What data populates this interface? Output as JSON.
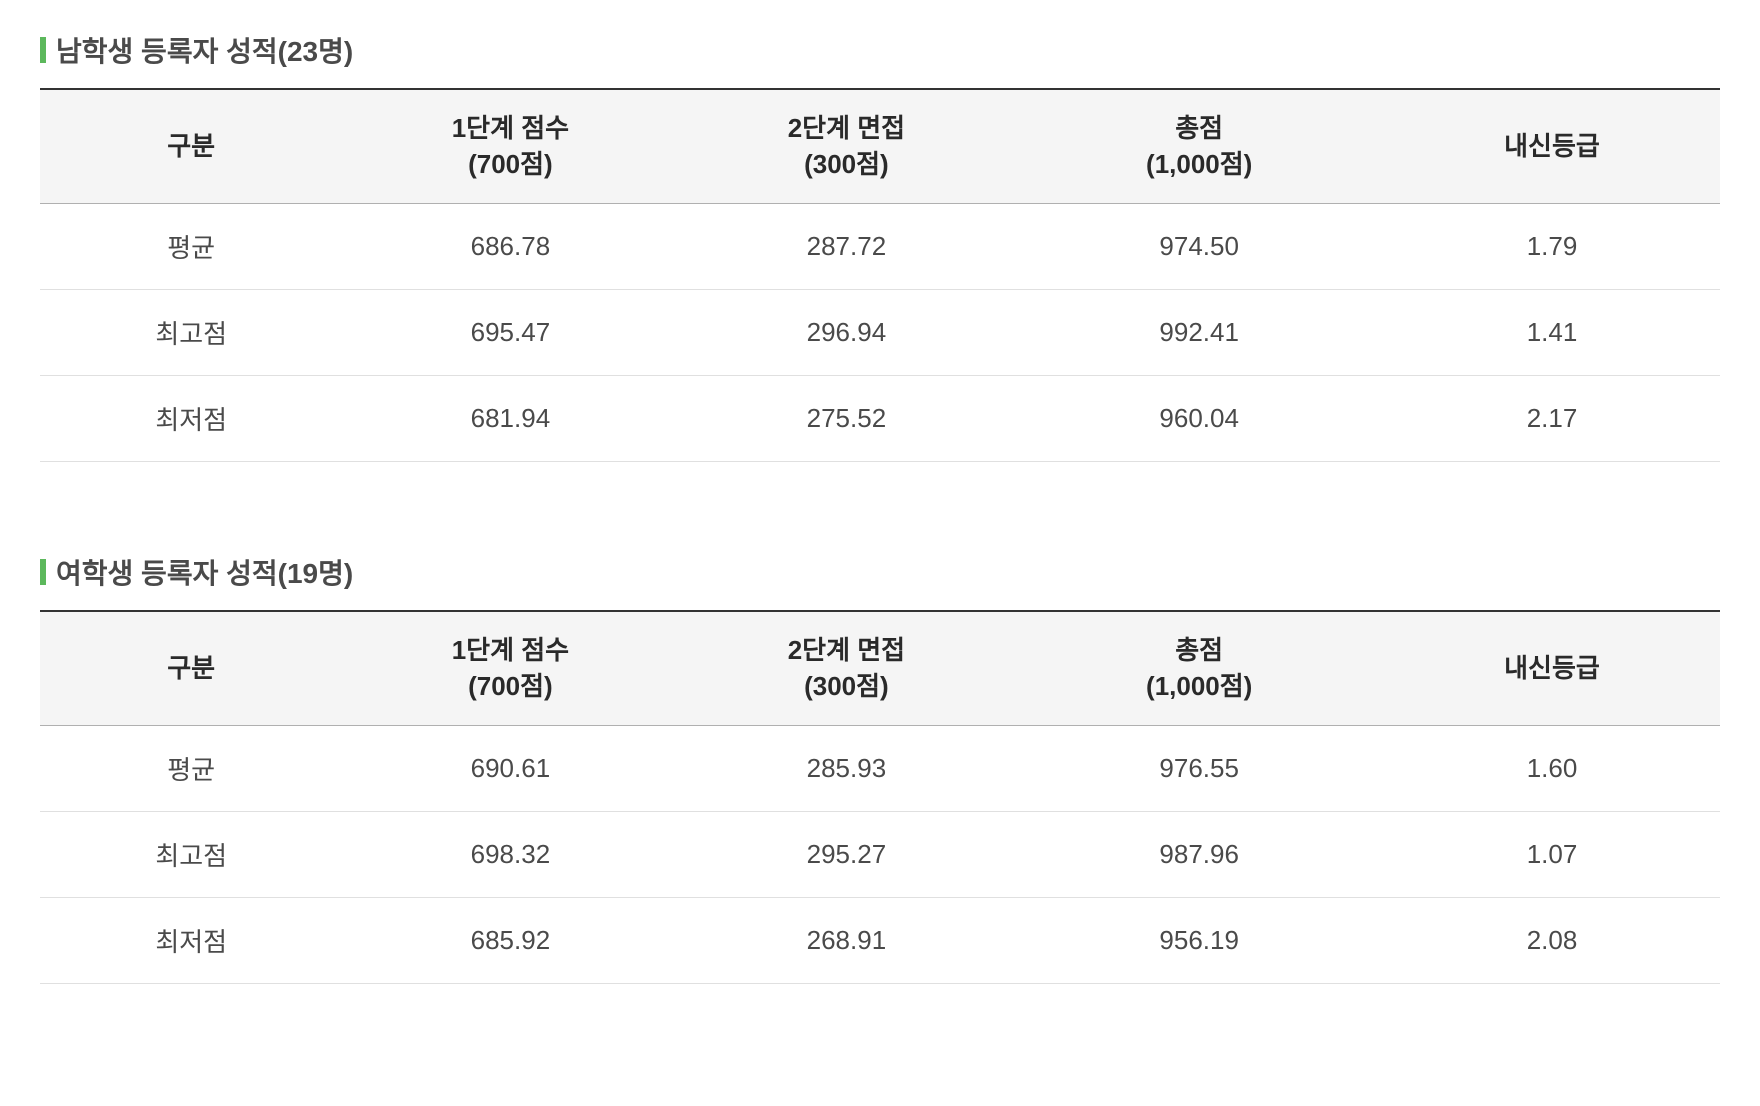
{
  "sections": [
    {
      "title": "남학생 등록자 성적(23명)",
      "columns": [
        "구분",
        "1단계 점수\n(700점)",
        "2단계 면접\n(300점)",
        "총점\n(1,000점)",
        "내신등급"
      ],
      "rows": [
        [
          "평균",
          "686.78",
          "287.72",
          "974.50",
          "1.79"
        ],
        [
          "최고점",
          "695.47",
          "296.94",
          "992.41",
          "1.41"
        ],
        [
          "최저점",
          "681.94",
          "275.52",
          "960.04",
          "2.17"
        ]
      ]
    },
    {
      "title": "여학생 등록자 성적(19명)",
      "columns": [
        "구분",
        "1단계 점수\n(700점)",
        "2단계 면접\n(300점)",
        "총점\n(1,000점)",
        "내신등급"
      ],
      "rows": [
        [
          "평균",
          "690.61",
          "285.93",
          "976.55",
          "1.60"
        ],
        [
          "최고점",
          "698.32",
          "295.27",
          "987.96",
          "1.07"
        ],
        [
          "최저점",
          "685.92",
          "268.91",
          "956.19",
          "2.08"
        ]
      ]
    }
  ],
  "style": {
    "marker_color": "#5cb85c",
    "header_bg": "#f5f5f5",
    "border_top": "#333333",
    "border_row": "#e0e0e0",
    "text_color": "#4a4a4a",
    "header_text_color": "#2a2a2a",
    "title_fontsize": 28,
    "cell_fontsize": 26
  }
}
